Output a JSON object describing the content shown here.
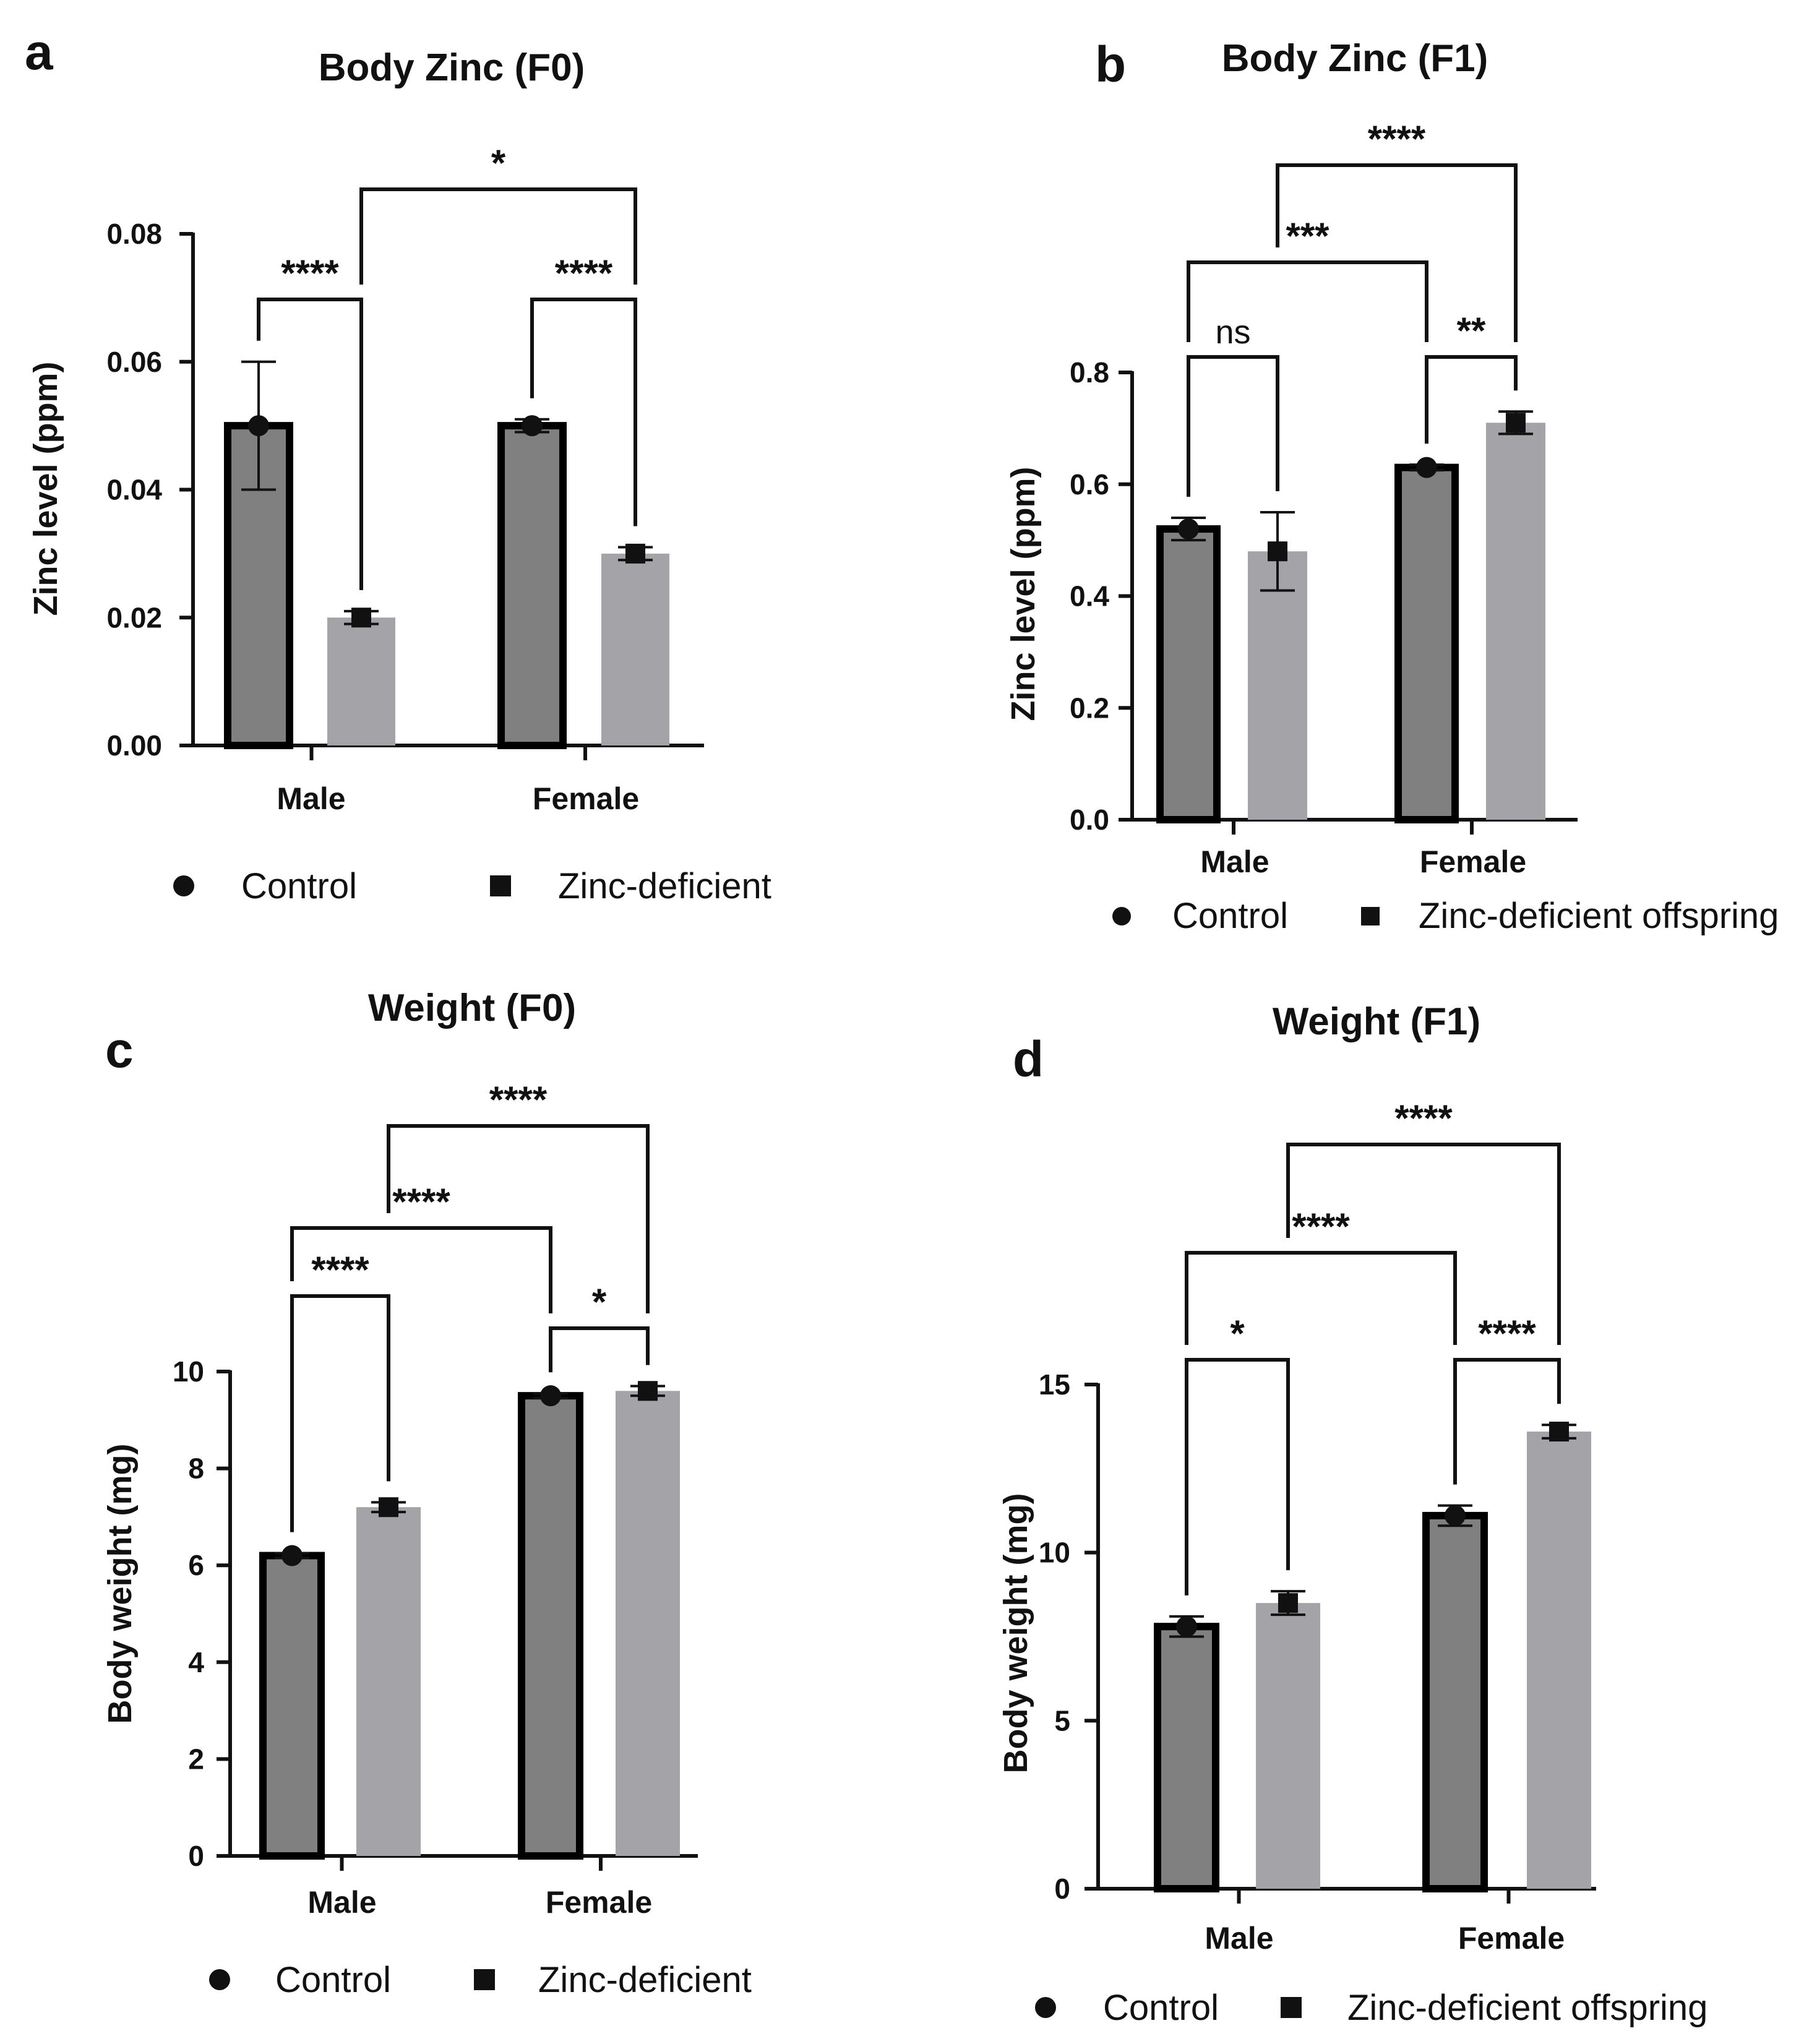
{
  "colors": {
    "control": "#808080",
    "zinc_deficient": "#a3a3a8",
    "ink": "#111111"
  },
  "chart_data": [
    {
      "panel": "a",
      "type": "bar",
      "title": "Body Zinc (F0)",
      "xlabel": "",
      "ylabel": "Zinc level (ppm)",
      "ylim": [
        0,
        0.08
      ],
      "yticks": [
        "0.00",
        "0.02",
        "0.04",
        "0.06",
        "0.08"
      ],
      "categories": [
        "Male",
        "Female"
      ],
      "series": [
        {
          "name": "Control",
          "marker": "circle",
          "values": [
            0.05,
            0.05
          ],
          "errors": [
            0.01,
            0.001
          ]
        },
        {
          "name": "Zinc-deficient",
          "marker": "square",
          "values": [
            0.02,
            0.03
          ],
          "errors": [
            0.001,
            0.001
          ]
        }
      ],
      "legend": [
        "Control",
        "Zinc-deficient"
      ],
      "significance": [
        {
          "label": "****",
          "from": [
            0,
            0
          ],
          "to": [
            0,
            1
          ]
        },
        {
          "label": "****",
          "from": [
            1,
            0
          ],
          "to": [
            1,
            1
          ]
        },
        {
          "label": "*",
          "from": [
            0,
            1
          ],
          "to": [
            1,
            1
          ]
        }
      ]
    },
    {
      "panel": "b",
      "type": "bar",
      "title": "Body Zinc (F1)",
      "xlabel": "",
      "ylabel": "Zinc level (ppm)",
      "ylim": [
        0,
        0.8
      ],
      "yticks": [
        "0.0",
        "0.2",
        "0.4",
        "0.6",
        "0.8"
      ],
      "categories": [
        "Male",
        "Female"
      ],
      "series": [
        {
          "name": "Control",
          "marker": "circle",
          "values": [
            0.52,
            0.63
          ],
          "errors": [
            0.02,
            0.005
          ]
        },
        {
          "name": "Zinc-deficient offspring",
          "marker": "square",
          "values": [
            0.48,
            0.71
          ],
          "errors": [
            0.07,
            0.02
          ]
        }
      ],
      "legend": [
        "Control",
        "Zinc-deficient offspring"
      ],
      "significance": [
        {
          "label": "ns",
          "from": [
            0,
            0
          ],
          "to": [
            0,
            1
          ]
        },
        {
          "label": "**",
          "from": [
            1,
            0
          ],
          "to": [
            1,
            1
          ]
        },
        {
          "label": "***",
          "from": [
            0,
            0
          ],
          "to": [
            1,
            0
          ]
        },
        {
          "label": "****",
          "from": [
            0,
            1
          ],
          "to": [
            1,
            1
          ]
        }
      ]
    },
    {
      "panel": "c",
      "type": "bar",
      "title": "Weight (F0)",
      "xlabel": "",
      "ylabel": "Body weight (mg)",
      "ylim": [
        0,
        10
      ],
      "yticks": [
        "0",
        "2",
        "4",
        "6",
        "8",
        "10"
      ],
      "categories": [
        "Male",
        "Female"
      ],
      "series": [
        {
          "name": "Control",
          "marker": "circle",
          "values": [
            6.2,
            9.5
          ],
          "errors": [
            0.05,
            0.05
          ]
        },
        {
          "name": "Zinc-deficient",
          "marker": "square",
          "values": [
            7.2,
            9.6
          ],
          "errors": [
            0.1,
            0.1
          ]
        }
      ],
      "legend": [
        "Control",
        "Zinc-deficient"
      ],
      "significance": [
        {
          "label": "****",
          "from": [
            0,
            0
          ],
          "to": [
            0,
            1
          ]
        },
        {
          "label": "*",
          "from": [
            1,
            0
          ],
          "to": [
            1,
            1
          ]
        },
        {
          "label": "****",
          "from": [
            0,
            0
          ],
          "to": [
            1,
            0
          ]
        },
        {
          "label": "****",
          "from": [
            0,
            1
          ],
          "to": [
            1,
            1
          ]
        }
      ]
    },
    {
      "panel": "d",
      "type": "bar",
      "title": "Weight (F1)",
      "xlabel": "",
      "ylabel": "Body weight (mg)",
      "ylim": [
        0,
        15
      ],
      "yticks": [
        "0",
        "5",
        "10",
        "15"
      ],
      "categories": [
        "Male",
        "Female"
      ],
      "series": [
        {
          "name": "Control",
          "marker": "circle",
          "values": [
            7.8,
            11.1
          ],
          "errors": [
            0.3,
            0.3
          ]
        },
        {
          "name": "Zinc-deficient offspring",
          "marker": "square",
          "values": [
            8.5,
            13.6
          ],
          "errors": [
            0.35,
            0.2
          ]
        }
      ],
      "legend": [
        "Control",
        "Zinc-deficient offspring"
      ],
      "significance": [
        {
          "label": "*",
          "from": [
            0,
            0
          ],
          "to": [
            0,
            1
          ]
        },
        {
          "label": "****",
          "from": [
            1,
            0
          ],
          "to": [
            1,
            1
          ]
        },
        {
          "label": "****",
          "from": [
            0,
            0
          ],
          "to": [
            1,
            0
          ]
        },
        {
          "label": "****",
          "from": [
            0,
            1
          ],
          "to": [
            1,
            1
          ]
        }
      ]
    }
  ]
}
